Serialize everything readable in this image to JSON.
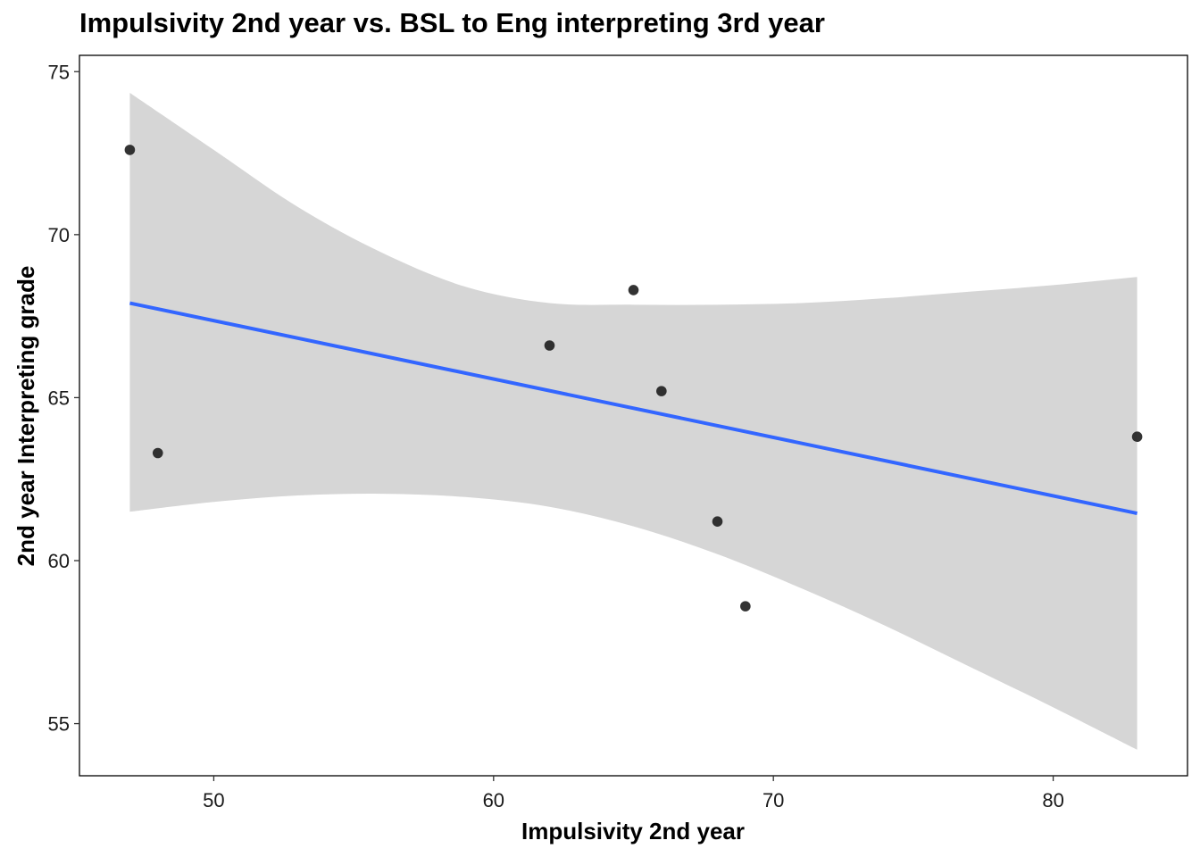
{
  "chart_data": {
    "type": "scatter",
    "title": "Impulsivity 2nd year vs. BSL to Eng interpreting 3rd year",
    "xlabel": "Impulsivity 2nd year",
    "ylabel": "2nd year Interpreting grade",
    "xlim": [
      45.2,
      84.8
    ],
    "ylim": [
      53.4,
      75.5
    ],
    "x_ticks": [
      50,
      60,
      70,
      80
    ],
    "y_ticks": [
      55,
      60,
      65,
      70,
      75
    ],
    "grid": false,
    "legend": "none",
    "points": [
      {
        "x": 47,
        "y": 72.6
      },
      {
        "x": 48,
        "y": 63.3
      },
      {
        "x": 62,
        "y": 66.6
      },
      {
        "x": 65,
        "y": 68.3
      },
      {
        "x": 66,
        "y": 65.2
      },
      {
        "x": 68,
        "y": 61.2
      },
      {
        "x": 69,
        "y": 58.6
      },
      {
        "x": 83,
        "y": 63.8
      }
    ],
    "fit_line": {
      "method": "linear",
      "x": [
        47,
        83
      ],
      "y": [
        67.9,
        61.45
      ]
    },
    "confidence_band": {
      "x": [
        47,
        50,
        53,
        56,
        59,
        62,
        65,
        68,
        71,
        74,
        77,
        80,
        83
      ],
      "upper": [
        74.35,
        72.6,
        70.85,
        69.45,
        68.4,
        67.9,
        67.85,
        67.85,
        67.9,
        68.05,
        68.25,
        68.45,
        68.7
      ],
      "lower": [
        61.5,
        61.8,
        62.0,
        62.05,
        61.95,
        61.65,
        61.05,
        60.2,
        59.15,
        58.0,
        56.75,
        55.5,
        54.2
      ]
    },
    "colors": {
      "points": "#222222",
      "fit_line": "#3366ff",
      "band": "#d6d6d6",
      "axis": "#000000"
    }
  }
}
